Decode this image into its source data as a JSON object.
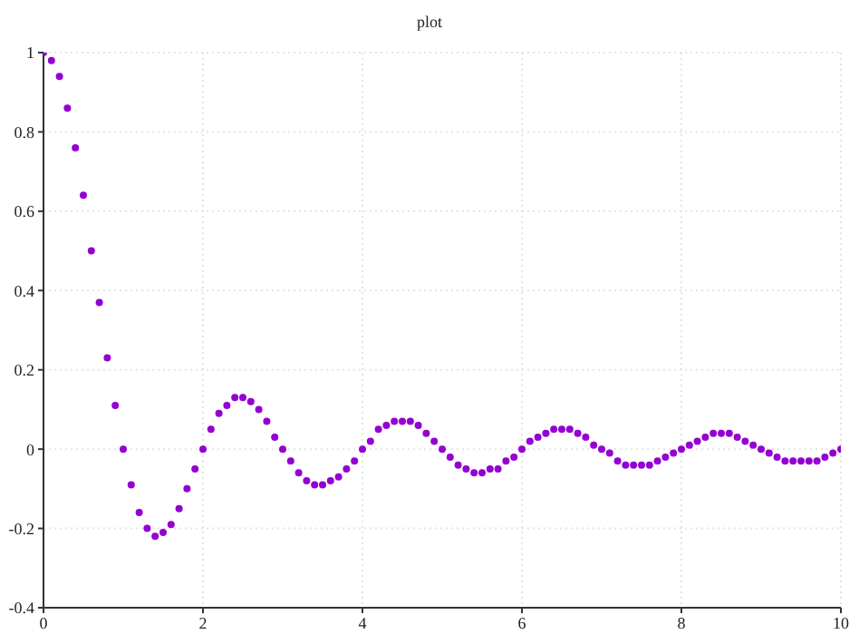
{
  "chart_data": {
    "type": "scatter",
    "title": "plot",
    "x": [
      0,
      0.1,
      0.2,
      0.3,
      0.4,
      0.5,
      0.6,
      0.7,
      0.8,
      0.9,
      1,
      1.1,
      1.2,
      1.3,
      1.4,
      1.5,
      1.6,
      1.7,
      1.8,
      1.9,
      2,
      2.1,
      2.2,
      2.3,
      2.4,
      2.5,
      2.6,
      2.7,
      2.8,
      2.9,
      3,
      3.1,
      3.2,
      3.3,
      3.4,
      3.5,
      3.6,
      3.7,
      3.8,
      3.9,
      4,
      4.1,
      4.2,
      4.3,
      4.4,
      4.5,
      4.6,
      4.7,
      4.8,
      4.9,
      5,
      5.1,
      5.2,
      5.3,
      5.4,
      5.5,
      5.6,
      5.7,
      5.8,
      5.9,
      6,
      6.1,
      6.2,
      6.3,
      6.4,
      6.5,
      6.6,
      6.7,
      6.8,
      6.9,
      7,
      7.1,
      7.2,
      7.3,
      7.4,
      7.5,
      7.6,
      7.7,
      7.8,
      7.9,
      8,
      8.1,
      8.2,
      8.3,
      8.4,
      8.5,
      8.6,
      8.7,
      8.8,
      8.9,
      9,
      9.1,
      9.2,
      9.3,
      9.4,
      9.5,
      9.6,
      9.7,
      9.8,
      9.9,
      10
    ],
    "series": [
      {
        "color": "#9400d3",
        "values": [
          1,
          0.98,
          0.94,
          0.86,
          0.76,
          0.64,
          0.5,
          0.37,
          0.23,
          0.11,
          0,
          -0.09,
          -0.16,
          -0.2,
          -0.22,
          -0.21,
          -0.19,
          -0.15,
          -0.1,
          -0.05,
          0,
          0.05,
          0.09,
          0.11,
          0.13,
          0.13,
          0.12,
          0.1,
          0.07,
          0.03,
          0,
          -0.03,
          -0.06,
          -0.08,
          -0.09,
          -0.09,
          -0.08,
          -0.07,
          -0.05,
          -0.03,
          0,
          0.02,
          0.05,
          0.06,
          0.07,
          0.07,
          0.07,
          0.06,
          0.04,
          0.02,
          0,
          -0.02,
          -0.04,
          -0.05,
          -0.06,
          -0.06,
          -0.05,
          -0.05,
          -0.03,
          -0.02,
          0,
          0.02,
          0.03,
          0.04,
          0.05,
          0.05,
          0.05,
          0.04,
          0.03,
          0.01,
          0,
          -0.01,
          -0.03,
          -0.04,
          -0.04,
          -0.04,
          -0.04,
          -0.03,
          -0.02,
          -0.01,
          0,
          0.01,
          0.02,
          0.03,
          0.04,
          0.04,
          0.04,
          0.03,
          0.02,
          0.01,
          0,
          -0.01,
          -0.02,
          -0.03,
          -0.03,
          -0.03,
          -0.03,
          -0.03,
          -0.02,
          -0.01,
          0
        ]
      }
    ],
    "xlim": [
      0,
      10
    ],
    "xticks": [
      0,
      2,
      4,
      6,
      8,
      10
    ],
    "ylim": [
      -0.4,
      1
    ],
    "yticks": [
      -0.4,
      -0.2,
      0,
      0.2,
      0.4,
      0.6,
      0.8,
      1
    ],
    "grid": true,
    "marker": "circle",
    "legend": false
  }
}
